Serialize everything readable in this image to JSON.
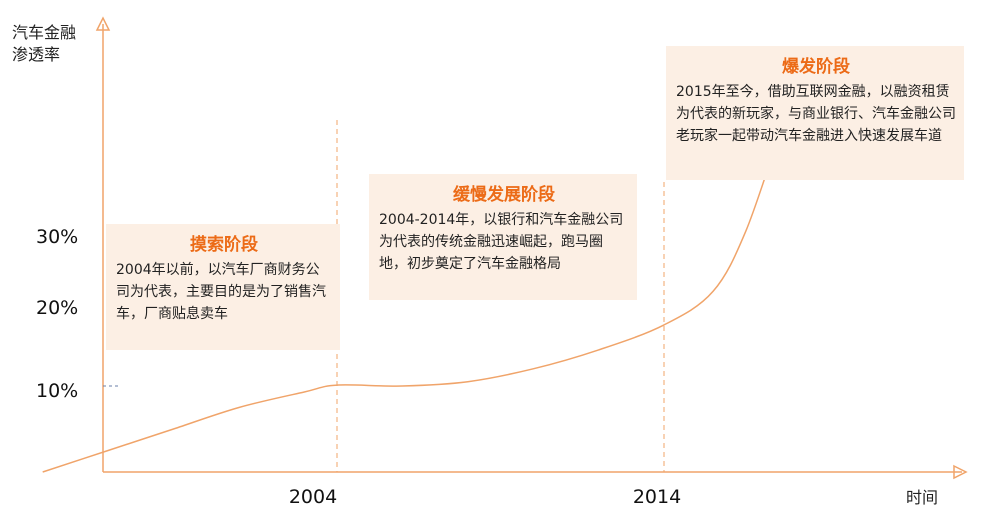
{
  "chart_data": {
    "type": "line",
    "ylabel_line1": "汽车金融",
    "ylabel_line2": "渗透率",
    "xlabel": "时间",
    "y_ticks": [
      "10%",
      "20%",
      "30%"
    ],
    "x_ticks": [
      "2004",
      "2014"
    ],
    "x_tick_values": [
      2004,
      2014
    ],
    "line_color": "#f0a46a",
    "accent_color": "#ec6b17",
    "series": [
      {
        "x": [
          1995,
          1997,
          1999,
          2001,
          2003,
          2004,
          2006,
          2008,
          2010,
          2012,
          2014,
          2015.5,
          2016.5,
          2017.5
        ],
        "values": [
          0,
          2.5,
          5,
          7.5,
          9.3,
          10.1,
          10.0,
          10.5,
          12.0,
          14.2,
          17.1,
          21.0,
          28.0,
          39.0
        ]
      }
    ],
    "stages": [
      {
        "title": "摸索阶段",
        "description": "2004年以前，以汽车厂商财务公司为代表，主要目的是为了销售汽车，厂商贴息卖车"
      },
      {
        "title": "缓慢发展阶段",
        "description": "2004-2014年，以银行和汽车金融公司为代表的传统金融迅速崛起，跑马圈地，初步奠定了汽车金融格局"
      },
      {
        "title": "爆发阶段",
        "description": "2015年至今，借助互联网金融，以融资租赁为代表的新玩家，与商业银行、汽车金融公司老玩家一起带动汽车金融进入快速发展车道"
      }
    ]
  }
}
